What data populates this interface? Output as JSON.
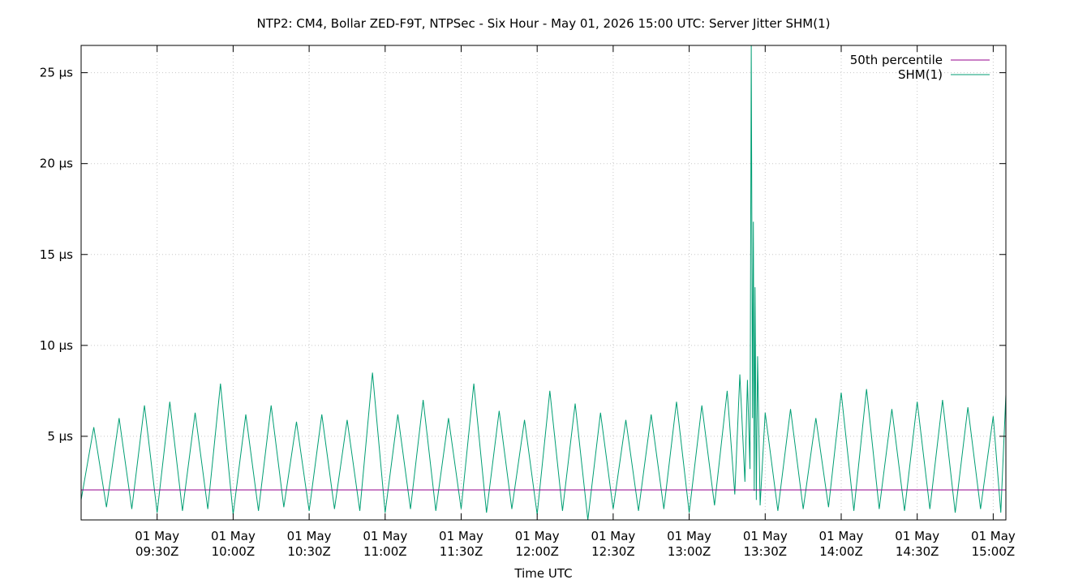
{
  "chart_data": {
    "type": "line",
    "title": "NTP2: CM4, Bollar ZED-F9T, NTPSec - Six Hour - May 01, 2026 15:00 UTC: Server Jitter SHM(1)",
    "xlabel": "Time UTC",
    "ylabel": "",
    "x_range": [
      "2026-05-01T09:00:00Z",
      "2026-05-01T15:05:00Z"
    ],
    "ylim": [
      0.4,
      26.5
    ],
    "y_unit": "µs",
    "grid": true,
    "legend_position": "top-right",
    "y_ticks": [
      {
        "value": 5,
        "label": "5 µs"
      },
      {
        "value": 10,
        "label": "10 µs"
      },
      {
        "value": 15,
        "label": "15 µs"
      },
      {
        "value": 20,
        "label": "20 µs"
      },
      {
        "value": 25,
        "label": "25 µs"
      }
    ],
    "x_ticks": [
      {
        "time": "2026-05-01T09:30:00Z",
        "line1": "01 May",
        "line2": "09:30Z"
      },
      {
        "time": "2026-05-01T10:00:00Z",
        "line1": "01 May",
        "line2": "10:00Z"
      },
      {
        "time": "2026-05-01T10:30:00Z",
        "line1": "01 May",
        "line2": "10:30Z"
      },
      {
        "time": "2026-05-01T11:00:00Z",
        "line1": "01 May",
        "line2": "11:00Z"
      },
      {
        "time": "2026-05-01T11:30:00Z",
        "line1": "01 May",
        "line2": "11:30Z"
      },
      {
        "time": "2026-05-01T12:00:00Z",
        "line1": "01 May",
        "line2": "12:00Z"
      },
      {
        "time": "2026-05-01T12:30:00Z",
        "line1": "01 May",
        "line2": "12:30Z"
      },
      {
        "time": "2026-05-01T13:00:00Z",
        "line1": "01 May",
        "line2": "13:00Z"
      },
      {
        "time": "2026-05-01T13:30:00Z",
        "line1": "01 May",
        "line2": "13:30Z"
      },
      {
        "time": "2026-05-01T14:00:00Z",
        "line1": "01 May",
        "line2": "14:00Z"
      },
      {
        "time": "2026-05-01T14:30:00Z",
        "line1": "01 May",
        "line2": "14:30Z"
      },
      {
        "time": "2026-05-01T15:00:00Z",
        "line1": "01 May",
        "line2": "15:00Z"
      }
    ],
    "series": [
      {
        "name": "50th percentile",
        "color": "#94008c",
        "points": [
          {
            "t": "2026-05-01T09:00:00Z",
            "v": 2.05
          },
          {
            "t": "2026-05-01T15:05:00Z",
            "v": 2.05
          }
        ]
      },
      {
        "name": "SHM(1)",
        "color": "#009e73",
        "points": [
          {
            "t": "2026-05-01T09:00:00Z",
            "v": 1.5
          },
          {
            "t": "2026-05-01T09:05:00Z",
            "v": 5.5
          },
          {
            "t": "2026-05-01T09:10:00Z",
            "v": 1.1
          },
          {
            "t": "2026-05-01T09:15:00Z",
            "v": 6.0
          },
          {
            "t": "2026-05-01T09:20:00Z",
            "v": 1.0
          },
          {
            "t": "2026-05-01T09:25:00Z",
            "v": 6.7
          },
          {
            "t": "2026-05-01T09:30:00Z",
            "v": 0.8
          },
          {
            "t": "2026-05-01T09:35:00Z",
            "v": 6.9
          },
          {
            "t": "2026-05-01T09:40:00Z",
            "v": 0.9
          },
          {
            "t": "2026-05-01T09:45:00Z",
            "v": 6.3
          },
          {
            "t": "2026-05-01T09:50:00Z",
            "v": 1.0
          },
          {
            "t": "2026-05-01T09:55:00Z",
            "v": 7.9
          },
          {
            "t": "2026-05-01T10:00:00Z",
            "v": 0.7
          },
          {
            "t": "2026-05-01T10:05:00Z",
            "v": 6.2
          },
          {
            "t": "2026-05-01T10:10:00Z",
            "v": 0.9
          },
          {
            "t": "2026-05-01T10:15:00Z",
            "v": 6.7
          },
          {
            "t": "2026-05-01T10:20:00Z",
            "v": 1.1
          },
          {
            "t": "2026-05-01T10:25:00Z",
            "v": 5.8
          },
          {
            "t": "2026-05-01T10:30:00Z",
            "v": 0.9
          },
          {
            "t": "2026-05-01T10:35:00Z",
            "v": 6.2
          },
          {
            "t": "2026-05-01T10:40:00Z",
            "v": 1.0
          },
          {
            "t": "2026-05-01T10:45:00Z",
            "v": 5.9
          },
          {
            "t": "2026-05-01T10:50:00Z",
            "v": 0.9
          },
          {
            "t": "2026-05-01T10:55:00Z",
            "v": 8.5
          },
          {
            "t": "2026-05-01T11:00:00Z",
            "v": 0.8
          },
          {
            "t": "2026-05-01T11:05:00Z",
            "v": 6.2
          },
          {
            "t": "2026-05-01T11:10:00Z",
            "v": 1.0
          },
          {
            "t": "2026-05-01T11:15:00Z",
            "v": 7.0
          },
          {
            "t": "2026-05-01T11:20:00Z",
            "v": 0.9
          },
          {
            "t": "2026-05-01T11:25:00Z",
            "v": 6.0
          },
          {
            "t": "2026-05-01T11:30:00Z",
            "v": 1.0
          },
          {
            "t": "2026-05-01T11:35:00Z",
            "v": 7.9
          },
          {
            "t": "2026-05-01T11:40:00Z",
            "v": 0.8
          },
          {
            "t": "2026-05-01T11:45:00Z",
            "v": 6.4
          },
          {
            "t": "2026-05-01T11:50:00Z",
            "v": 1.0
          },
          {
            "t": "2026-05-01T11:55:00Z",
            "v": 5.9
          },
          {
            "t": "2026-05-01T12:00:00Z",
            "v": 0.7
          },
          {
            "t": "2026-05-01T12:05:00Z",
            "v": 7.5
          },
          {
            "t": "2026-05-01T12:10:00Z",
            "v": 0.9
          },
          {
            "t": "2026-05-01T12:15:00Z",
            "v": 6.8
          },
          {
            "t": "2026-05-01T12:20:00Z",
            "v": 0.4
          },
          {
            "t": "2026-05-01T12:25:00Z",
            "v": 6.3
          },
          {
            "t": "2026-05-01T12:30:00Z",
            "v": 1.0
          },
          {
            "t": "2026-05-01T12:35:00Z",
            "v": 5.9
          },
          {
            "t": "2026-05-01T12:40:00Z",
            "v": 0.9
          },
          {
            "t": "2026-05-01T12:45:00Z",
            "v": 6.2
          },
          {
            "t": "2026-05-01T12:50:00Z",
            "v": 1.0
          },
          {
            "t": "2026-05-01T12:55:00Z",
            "v": 6.9
          },
          {
            "t": "2026-05-01T13:00:00Z",
            "v": 0.8
          },
          {
            "t": "2026-05-01T13:05:00Z",
            "v": 6.7
          },
          {
            "t": "2026-05-01T13:10:00Z",
            "v": 1.2
          },
          {
            "t": "2026-05-01T13:15:00Z",
            "v": 7.5
          },
          {
            "t": "2026-05-01T13:18:00Z",
            "v": 1.8
          },
          {
            "t": "2026-05-01T13:20:00Z",
            "v": 8.4
          },
          {
            "t": "2026-05-01T13:22:00Z",
            "v": 2.5
          },
          {
            "t": "2026-05-01T13:23:00Z",
            "v": 8.1
          },
          {
            "t": "2026-05-01T13:24:00Z",
            "v": 3.2
          },
          {
            "t": "2026-05-01T13:24:30Z",
            "v": 26.5
          },
          {
            "t": "2026-05-01T13:25:00Z",
            "v": 6.0
          },
          {
            "t": "2026-05-01T13:25:20Z",
            "v": 16.8
          },
          {
            "t": "2026-05-01T13:25:40Z",
            "v": 2.0
          },
          {
            "t": "2026-05-01T13:26:00Z",
            "v": 13.2
          },
          {
            "t": "2026-05-01T13:26:30Z",
            "v": 1.5
          },
          {
            "t": "2026-05-01T13:27:00Z",
            "v": 9.4
          },
          {
            "t": "2026-05-01T13:28:00Z",
            "v": 1.2
          },
          {
            "t": "2026-05-01T13:30:00Z",
            "v": 6.3
          },
          {
            "t": "2026-05-01T13:35:00Z",
            "v": 0.9
          },
          {
            "t": "2026-05-01T13:40:00Z",
            "v": 6.5
          },
          {
            "t": "2026-05-01T13:45:00Z",
            "v": 1.0
          },
          {
            "t": "2026-05-01T13:50:00Z",
            "v": 6.0
          },
          {
            "t": "2026-05-01T13:55:00Z",
            "v": 1.1
          },
          {
            "t": "2026-05-01T14:00:00Z",
            "v": 7.4
          },
          {
            "t": "2026-05-01T14:05:00Z",
            "v": 0.9
          },
          {
            "t": "2026-05-01T14:10:00Z",
            "v": 7.6
          },
          {
            "t": "2026-05-01T14:15:00Z",
            "v": 1.0
          },
          {
            "t": "2026-05-01T14:20:00Z",
            "v": 6.5
          },
          {
            "t": "2026-05-01T14:25:00Z",
            "v": 0.9
          },
          {
            "t": "2026-05-01T14:30:00Z",
            "v": 6.9
          },
          {
            "t": "2026-05-01T14:35:00Z",
            "v": 1.0
          },
          {
            "t": "2026-05-01T14:40:00Z",
            "v": 7.0
          },
          {
            "t": "2026-05-01T14:45:00Z",
            "v": 0.8
          },
          {
            "t": "2026-05-01T14:50:00Z",
            "v": 6.6
          },
          {
            "t": "2026-05-01T14:55:00Z",
            "v": 1.0
          },
          {
            "t": "2026-05-01T15:00:00Z",
            "v": 6.1
          },
          {
            "t": "2026-05-01T15:03:00Z",
            "v": 0.8
          },
          {
            "t": "2026-05-01T15:05:00Z",
            "v": 7.3
          }
        ]
      }
    ]
  }
}
